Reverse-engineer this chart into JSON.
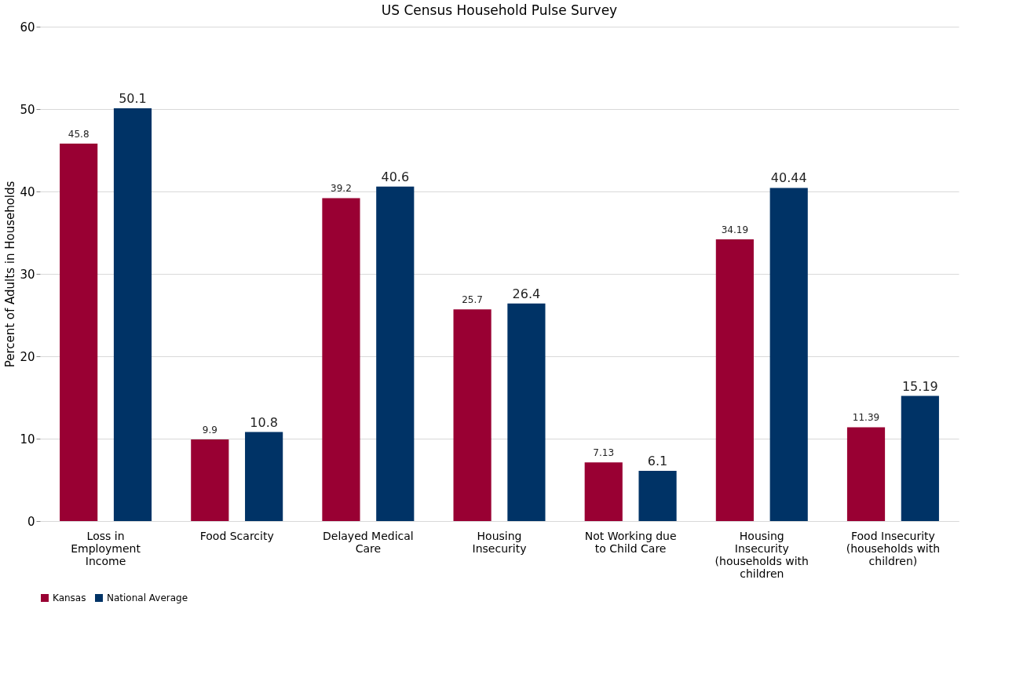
{
  "chart_data": {
    "type": "bar",
    "title": "US Census Household Pulse Survey",
    "ylabel": "Percent of Adults in Households",
    "categories": [
      "Loss in Employment Income",
      "Food Scarcity",
      "Delayed Medical Care",
      "Housing Insecurity",
      "Not Working due to Child Care",
      "Housing Insecurity (households with children",
      "Food Insecurity (households with children)"
    ],
    "series": [
      {
        "name": "Kansas",
        "color": "#990033",
        "values": [
          45.8,
          9.9,
          39.2,
          25.7,
          7.13,
          34.19,
          11.39
        ]
      },
      {
        "name": "National Average",
        "color": "#003366",
        "values": [
          50.1,
          10.8,
          40.6,
          26.4,
          6.1,
          40.44,
          15.19
        ]
      }
    ],
    "ylim": [
      0,
      60
    ],
    "yticks": [
      0,
      10,
      20,
      30,
      40,
      50,
      60
    ],
    "grid": "y",
    "legend": "bottom",
    "data_labels": true
  }
}
